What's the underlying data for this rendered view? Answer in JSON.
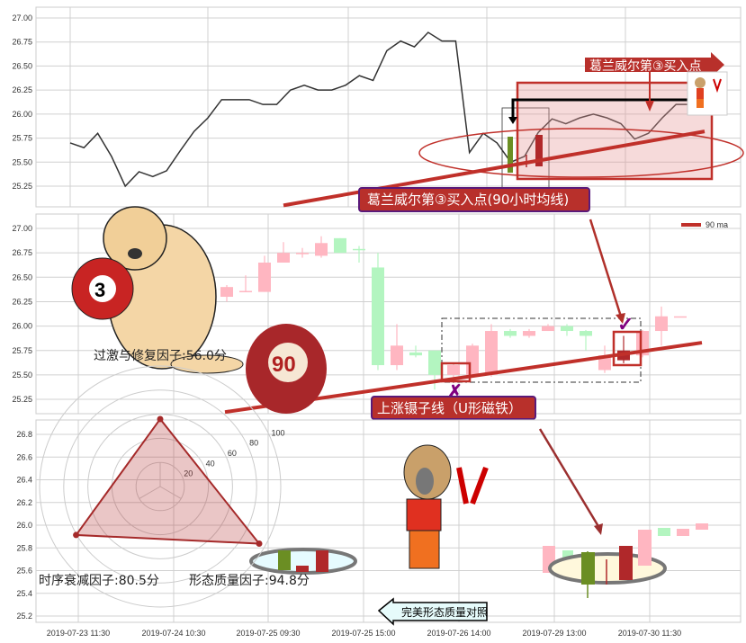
{
  "chart_data": [
    {
      "type": "line",
      "panel": "top",
      "ylim": [
        25.05,
        27.1
      ],
      "yticks": [
        "25.25",
        "25.50",
        "25.75",
        "26.00",
        "26.25",
        "26.50",
        "26.75",
        "27.00"
      ],
      "series": [
        {
          "values": [
            25.7,
            25.65,
            25.8,
            25.56,
            25.25,
            25.4,
            25.35,
            25.41,
            25.62,
            25.82,
            25.96,
            26.15,
            26.15,
            26.15,
            26.1,
            26.1,
            26.25,
            26.3,
            26.25,
            26.25,
            26.3,
            26.4,
            26.35,
            26.66,
            26.76,
            26.7,
            26.85,
            26.76,
            26.76,
            25.6,
            25.8,
            25.7,
            25.5,
            25.56,
            25.81,
            25.95,
            25.9,
            25.96,
            26.0,
            25.96,
            25.9,
            25.74,
            25.8,
            25.96,
            26.1,
            26.1
          ],
          "color": "#333333"
        }
      ],
      "ma_line": {
        "from": 25.05,
        "to": 25.82,
        "color": "#c0302a"
      },
      "annotations": [
        "葛兰威尔第③买入点",
        "葛兰威尔第③买入点(90小时均线)"
      ]
    },
    {
      "type": "candlestick",
      "panel": "middle",
      "ylim": [
        25.1,
        27.1
      ],
      "yticks": [
        "25.25",
        "25.50",
        "25.75",
        "26.00",
        "26.25",
        "26.50",
        "26.75",
        "27.00"
      ],
      "legend": {
        "label": "90 ma",
        "position": "top-right"
      },
      "candles": [
        {
          "o": 26.3,
          "c": 26.4,
          "h": 26.42,
          "l": 26.25
        },
        {
          "o": 26.35,
          "c": 26.36,
          "h": 26.52,
          "l": 26.35
        },
        {
          "o": 26.35,
          "c": 26.65,
          "h": 26.72,
          "l": 26.35
        },
        {
          "o": 26.65,
          "c": 26.75,
          "h": 26.86,
          "l": 26.65
        },
        {
          "o": 26.74,
          "c": 26.75,
          "h": 26.8,
          "l": 26.7
        },
        {
          "o": 26.72,
          "c": 26.85,
          "h": 26.92,
          "l": 26.7
        },
        {
          "o": 26.9,
          "c": 26.75,
          "h": 26.9,
          "l": 26.75
        },
        {
          "o": 26.79,
          "c": 26.78,
          "h": 26.82,
          "l": 26.65
        },
        {
          "o": 26.6,
          "c": 25.6,
          "h": 26.75,
          "l": 25.55
        },
        {
          "o": 25.6,
          "c": 25.8,
          "h": 26.02,
          "l": 25.55
        },
        {
          "o": 25.73,
          "c": 25.7,
          "h": 25.8,
          "l": 25.68
        },
        {
          "o": 25.75,
          "c": 25.5,
          "h": 25.75,
          "l": 25.35
        },
        {
          "o": 25.5,
          "c": 25.6,
          "h": 25.62,
          "l": 25.42
        },
        {
          "o": 25.5,
          "c": 25.8,
          "h": 25.82,
          "l": 25.48
        },
        {
          "o": 25.5,
          "c": 25.95,
          "h": 26.02,
          "l": 25.48
        },
        {
          "o": 25.95,
          "c": 25.9,
          "h": 25.97,
          "l": 25.88
        },
        {
          "o": 25.9,
          "c": 25.95,
          "h": 25.97,
          "l": 25.88
        },
        {
          "o": 25.95,
          "c": 26.0,
          "h": 26.02,
          "l": 25.95
        },
        {
          "o": 26.0,
          "c": 25.95,
          "h": 26.02,
          "l": 25.9
        },
        {
          "o": 25.95,
          "c": 25.9,
          "h": 25.96,
          "l": 25.75
        },
        {
          "o": 25.55,
          "c": 25.7,
          "h": 25.8,
          "l": 25.52
        },
        {
          "o": 25.65,
          "c": 25.75,
          "h": 25.9,
          "l": 25.62
        },
        {
          "o": 25.7,
          "c": 25.95,
          "h": 25.96,
          "l": 25.68
        },
        {
          "o": 25.95,
          "c": 26.1,
          "h": 26.2,
          "l": 25.8
        },
        {
          "o": 26.1,
          "c": 26.1,
          "h": 26.1,
          "l": 26.1
        }
      ],
      "ma_line": {
        "from": 25.12,
        "to": 25.83,
        "color": "#c0302a"
      },
      "annotations": [
        "上涨镊子线（U形磁铁）"
      ]
    },
    {
      "type": "radar",
      "panel": "bottom",
      "ylim": [
        25.15,
        26.9
      ],
      "yticks": [
        "25.2",
        "25.4",
        "25.6",
        "25.8",
        "26.0",
        "26.2",
        "26.4",
        "26.6",
        "26.8"
      ],
      "xticks": [
        "2019-07-23 11:30",
        "2019-07-24 10:30",
        "2019-07-25 09:30",
        "2019-07-25 15:00",
        "2019-07-26 14:00",
        "2019-07-29 13:00",
        "2019-07-30 11:30"
      ],
      "radial_ticks": [
        "20",
        "40",
        "60",
        "80",
        "100"
      ],
      "factors": [
        {
          "label": "过激与修复因子:56.0分",
          "value": 56.0
        },
        {
          "label": "时序衰减因子:80.5分",
          "value": 80.5
        },
        {
          "label": "形态质量因子:94.8分",
          "value": 94.8
        }
      ],
      "annotations": [
        "完美形态质量对照"
      ]
    }
  ],
  "colors": {
    "up": "#ffb6c1",
    "down": "#b3f5c0",
    "accent": "#c0302a",
    "dark_up": "#b0282a",
    "dark_down": "#6b8e23"
  },
  "icons": [
    "dog-with-ball-3",
    "ball-90",
    "dog-with-pliers"
  ]
}
